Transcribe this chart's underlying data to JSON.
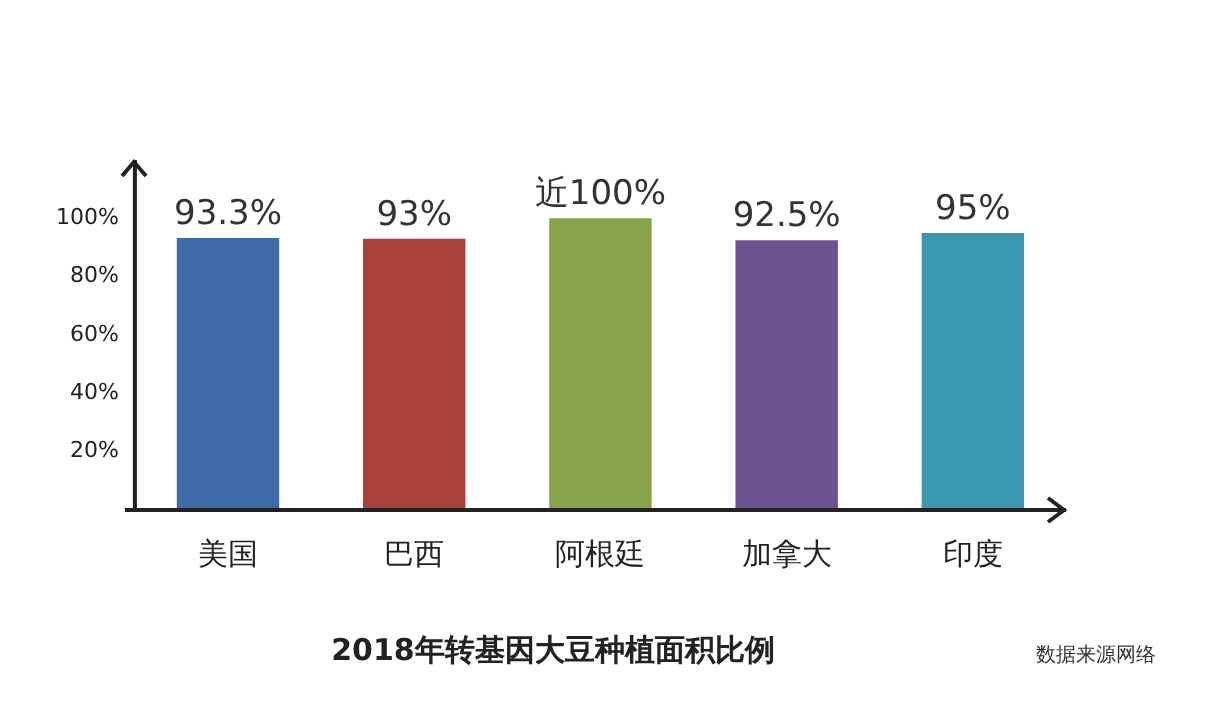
{
  "chart_data": {
    "type": "bar",
    "title": "2018年转基因大豆种植面积比例",
    "categories": [
      "美国",
      "巴西",
      "阿根廷",
      "加拿大",
      "印度"
    ],
    "series": [
      {
        "colors": [
          "#3e6aaa",
          "#a8403c",
          "#86a34a",
          "#6a5390",
          "#3a98b0"
        ],
        "values": [
          93.3,
          93,
          100,
          92.5,
          95
        ],
        "value_labels": [
          "93.3%",
          "93%",
          "近100%",
          "92.5%",
          "95%"
        ]
      }
    ],
    "ylim": [
      0,
      120
    ],
    "yticks": [
      {
        "value": 20,
        "label": "20%"
      },
      {
        "value": 40,
        "label": "40%"
      },
      {
        "value": 60,
        "label": "60%"
      },
      {
        "value": 80,
        "label": "80%"
      },
      {
        "value": 100,
        "label": "100%"
      }
    ],
    "grid": false,
    "legend": false,
    "annotations": [
      "数据来源网络"
    ]
  }
}
